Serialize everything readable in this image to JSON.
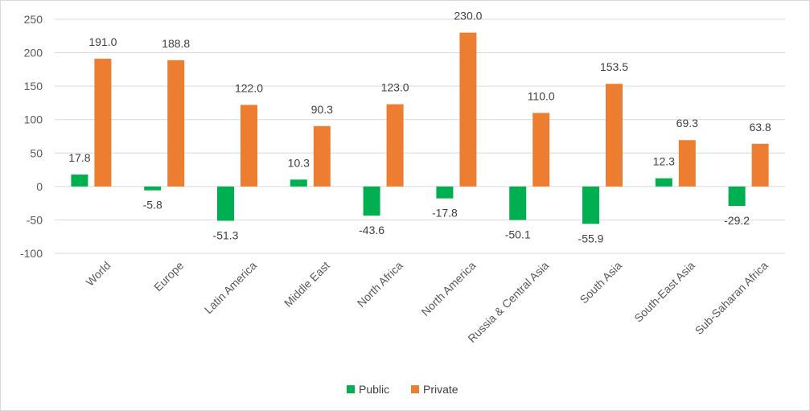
{
  "chart_data": {
    "type": "bar",
    "title": "",
    "xlabel": "",
    "ylabel": "",
    "categories": [
      "World",
      "Europe",
      "Latin America",
      "Middle East",
      "North Africa",
      "North America",
      "Russia & Central Asia",
      "South Asia",
      "South-East Asia",
      "Sub-Saharan Africa"
    ],
    "series": [
      {
        "name": "Public",
        "color": "#00b050",
        "values": [
          17.8,
          -5.8,
          -51.3,
          10.3,
          -43.6,
          -17.8,
          -50.1,
          -55.9,
          12.3,
          -29.2
        ],
        "labels": [
          "17.8",
          "-5.8",
          "-51.3",
          "10.3",
          "-43.6",
          "-17.8",
          "-50.1",
          "-55.9",
          "12.3",
          "-29.2"
        ]
      },
      {
        "name": "Private",
        "color": "#ed7d31",
        "values": [
          191.0,
          188.8,
          122.0,
          90.3,
          123.0,
          230.0,
          110.0,
          153.5,
          69.3,
          63.8
        ],
        "labels": [
          "191.0",
          "188.8",
          "122.0",
          "90.3",
          "123.0",
          "230.0",
          "110.0",
          "153.5",
          "69.3",
          "63.8"
        ]
      }
    ],
    "ylim": [
      -100,
      250
    ],
    "yticks": [
      250,
      200,
      150,
      100,
      50,
      0,
      -50,
      -100
    ],
    "grid": true,
    "legend_position": "bottom"
  }
}
